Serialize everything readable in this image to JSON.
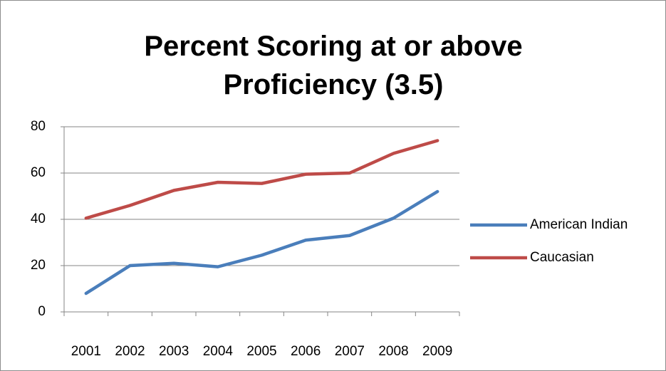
{
  "chart_data": {
    "type": "line",
    "title": "Percent Scoring at or above Proficiency (3.5)",
    "categories": [
      "2001",
      "2002",
      "2003",
      "2004",
      "2005",
      "2006",
      "2007",
      "2008",
      "2009"
    ],
    "series": [
      {
        "name": "American Indian",
        "color": "#4a7ebb",
        "values": [
          8,
          20,
          21,
          19.5,
          24.5,
          31,
          33,
          40.5,
          52
        ]
      },
      {
        "name": "Caucasian",
        "color": "#be4b48",
        "values": [
          40.5,
          46,
          52.5,
          56,
          55.5,
          59.5,
          60,
          68.5,
          74
        ]
      }
    ],
    "ylim": [
      0,
      80
    ],
    "yticks": [
      0,
      20,
      40,
      60,
      80
    ],
    "grid": true,
    "legend": "right"
  }
}
